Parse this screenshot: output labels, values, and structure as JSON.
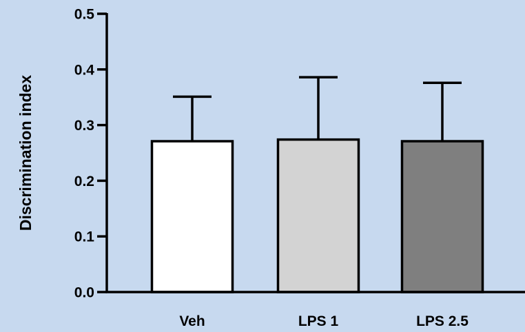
{
  "colors": {
    "background": "#c7d9ef",
    "axis": "#000000",
    "bar_fills": [
      "#ffffff",
      "#d3d3d3",
      "#7f7f7f"
    ]
  },
  "chart_data": {
    "type": "bar",
    "title": "",
    "xlabel": "",
    "ylabel": "Discrimination index",
    "categories": [
      "Veh",
      "LPS 1",
      "LPS 2.5"
    ],
    "values": [
      0.271,
      0.274,
      0.271
    ],
    "error_upper": [
      0.351,
      0.386,
      0.376
    ],
    "ylim": [
      0,
      0.5
    ],
    "yticks": [
      0.0,
      0.1,
      0.2,
      0.3,
      0.4,
      0.5
    ],
    "ytick_labels": [
      "0.0",
      "0.1",
      "0.2",
      "0.3",
      "0.4",
      "0.5"
    ],
    "grid": false,
    "legend": "none"
  }
}
